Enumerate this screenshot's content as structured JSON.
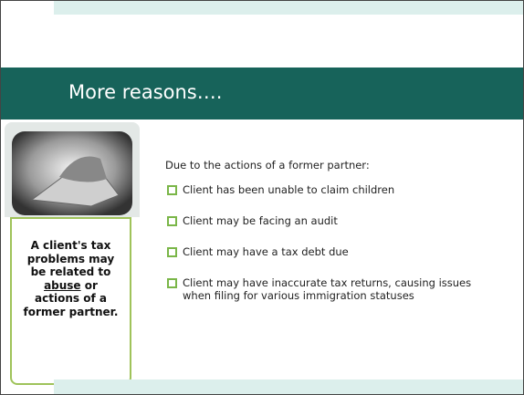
{
  "slide": {
    "title": "More reasons….",
    "intro": "Due to the actions of a former partner:",
    "bullets": [
      "Client has been unable to claim children",
      "Client may be facing an audit",
      "Client may have a tax debt due",
      "Client may have inaccurate tax returns, causing issues when filing for various immigration statuses"
    ],
    "sidebar": {
      "before": "A client's tax problems may be related to",
      "underlined": "abuse",
      "after": "or actions of a former partner."
    }
  }
}
